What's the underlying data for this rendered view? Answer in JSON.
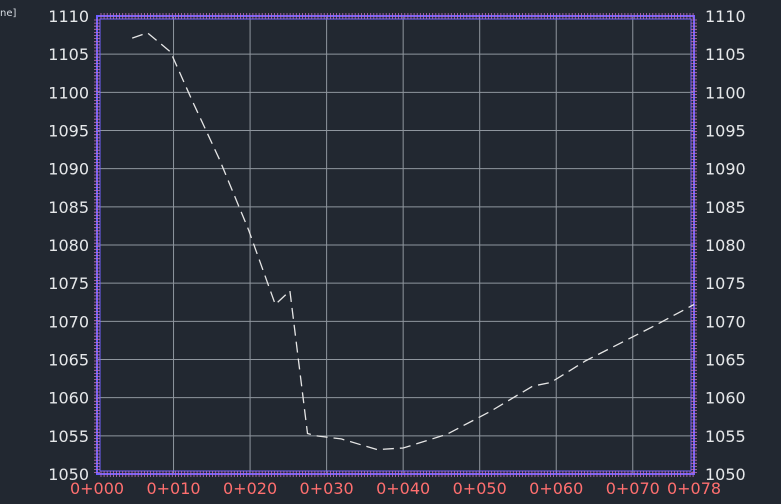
{
  "viewport": {
    "corner_label": "ne]"
  },
  "colors": {
    "background": "#222831",
    "grid": "#8f969e",
    "frame": "#7060ff",
    "frame_tick": "#c070c0",
    "y_tick_text": "#e6e8ea",
    "x_tick_text": "#ff6f6f",
    "profile_line": "#e6e6e6"
  },
  "chart_data": {
    "type": "line",
    "title": "",
    "xlabel": "",
    "ylabel": "",
    "grid": true,
    "line_style": "dashed",
    "xlim": [
      0,
      78
    ],
    "ylim": [
      1050,
      1110
    ],
    "x_ticks": [
      0,
      10,
      20,
      30,
      40,
      50,
      60,
      70,
      78
    ],
    "x_tick_labels": [
      "0+000",
      "0+010",
      "0+020",
      "0+030",
      "0+040",
      "0+050",
      "0+060",
      "0+070",
      "0+078"
    ],
    "y_ticks": [
      1050,
      1055,
      1060,
      1065,
      1070,
      1075,
      1080,
      1085,
      1090,
      1095,
      1100,
      1105,
      1110
    ],
    "y_tick_labels": [
      "1050",
      "1055",
      "1060",
      "1065",
      "1070",
      "1075",
      "1080",
      "1085",
      "1090",
      "1095",
      "1100",
      "1105",
      "1110"
    ],
    "series": [
      {
        "x": [
          4.6,
          6.6,
          9.6,
          12.4,
          16.0,
          19.8,
          23.3,
          25.2,
          27.5,
          28.6,
          31.9,
          36.6,
          40.0,
          45.7,
          51.4,
          56.9,
          59.3,
          63.8,
          72.6,
          78.0
        ],
        "y": [
          1107.1,
          1107.8,
          1105.3,
          1099.0,
          1091.2,
          1082.0,
          1072.2,
          1074.0,
          1055.3,
          1055.0,
          1054.6,
          1053.2,
          1053.4,
          1055.2,
          1058.2,
          1061.5,
          1062.0,
          1064.8,
          1069.3,
          1072.2
        ]
      }
    ]
  }
}
